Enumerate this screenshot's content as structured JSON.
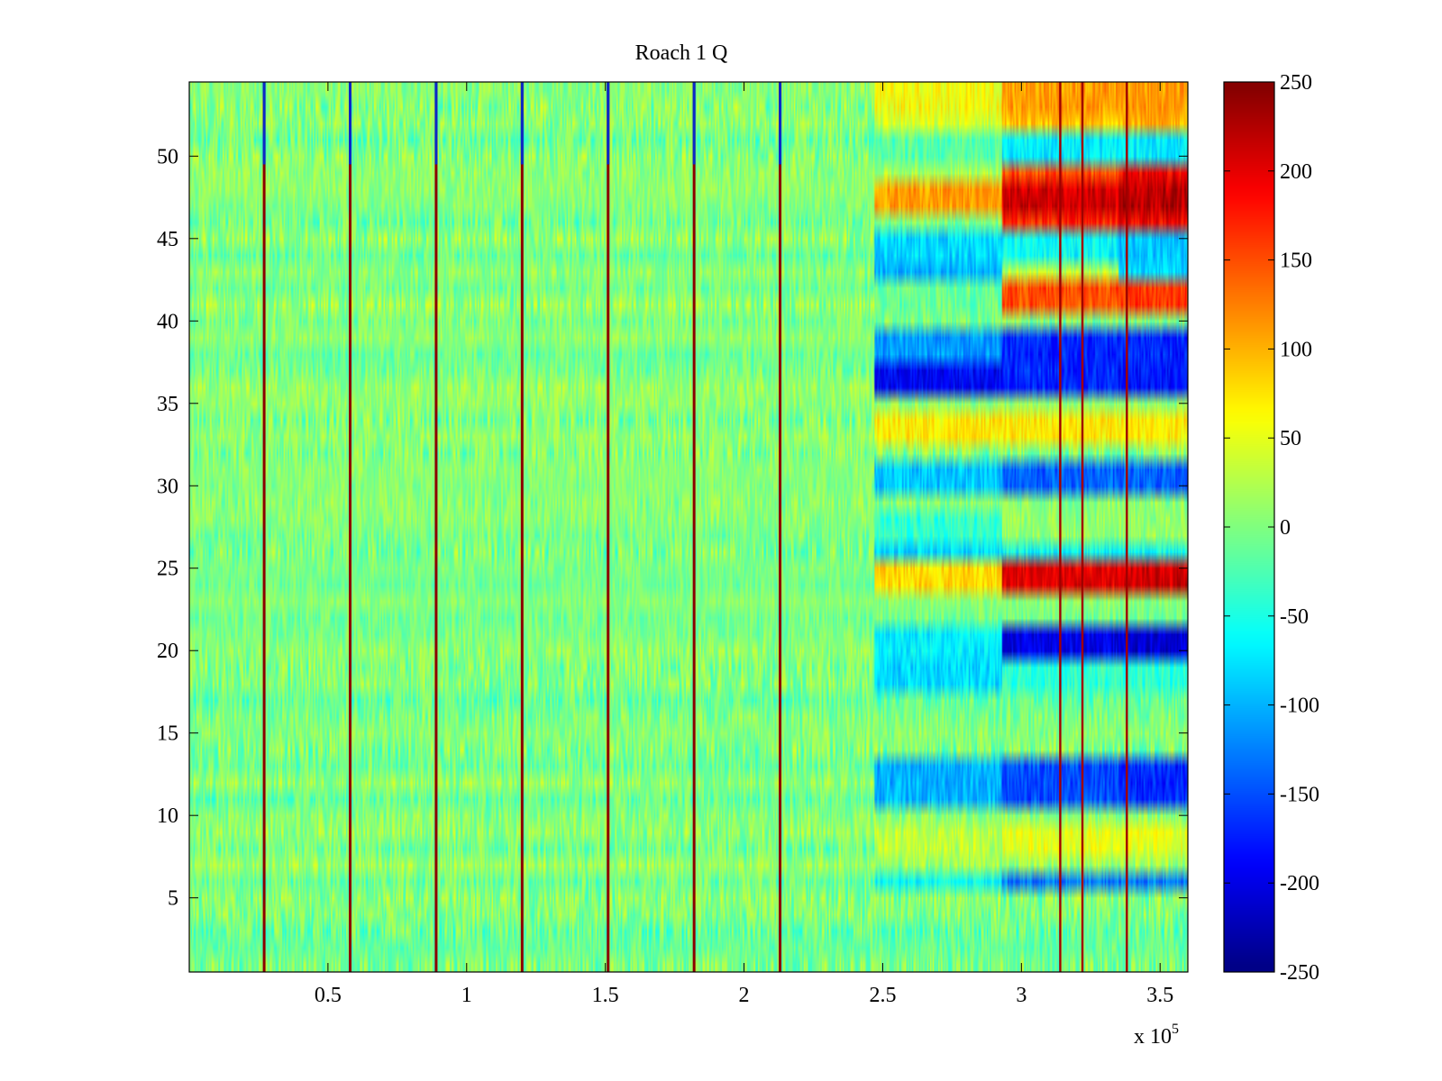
{
  "chart_data": {
    "type": "heatmap",
    "title": "Roach 1 Q",
    "xlabel": "",
    "ylabel": "",
    "x_exponent_label": "x 10",
    "x_exponent_power": "5",
    "xlim": [
      0,
      3.6
    ],
    "ylim": [
      0.5,
      54.5
    ],
    "x_ticks": [
      0.5,
      1,
      1.5,
      2,
      2.5,
      3,
      3.5
    ],
    "x_tick_labels": [
      "0.5",
      "1",
      "1.5",
      "2",
      "2.5",
      "3",
      "3.5"
    ],
    "y_ticks": [
      5,
      10,
      15,
      20,
      25,
      30,
      35,
      40,
      45,
      50
    ],
    "y_tick_labels": [
      "5",
      "10",
      "15",
      "20",
      "25",
      "30",
      "35",
      "40",
      "45",
      "50"
    ],
    "colormap": "jet",
    "clim": [
      -250,
      250
    ],
    "colorbar_ticks": [
      250,
      200,
      150,
      100,
      50,
      0,
      -50,
      -100,
      -150,
      -200,
      -250
    ],
    "colorbar_tick_labels": [
      "250",
      "200",
      "150",
      "100",
      "50",
      "0",
      "-50",
      "-100",
      "-150",
      "-200",
      "-250"
    ],
    "periodic_stripes_x": [
      0.27,
      0.58,
      0.89,
      1.2,
      1.51,
      1.82,
      2.13
    ],
    "late_stripes_x": [
      3.14,
      3.22,
      3.38
    ],
    "region_boundaries_x": [
      2.47,
      2.93,
      3.35
    ],
    "grid": false
  }
}
